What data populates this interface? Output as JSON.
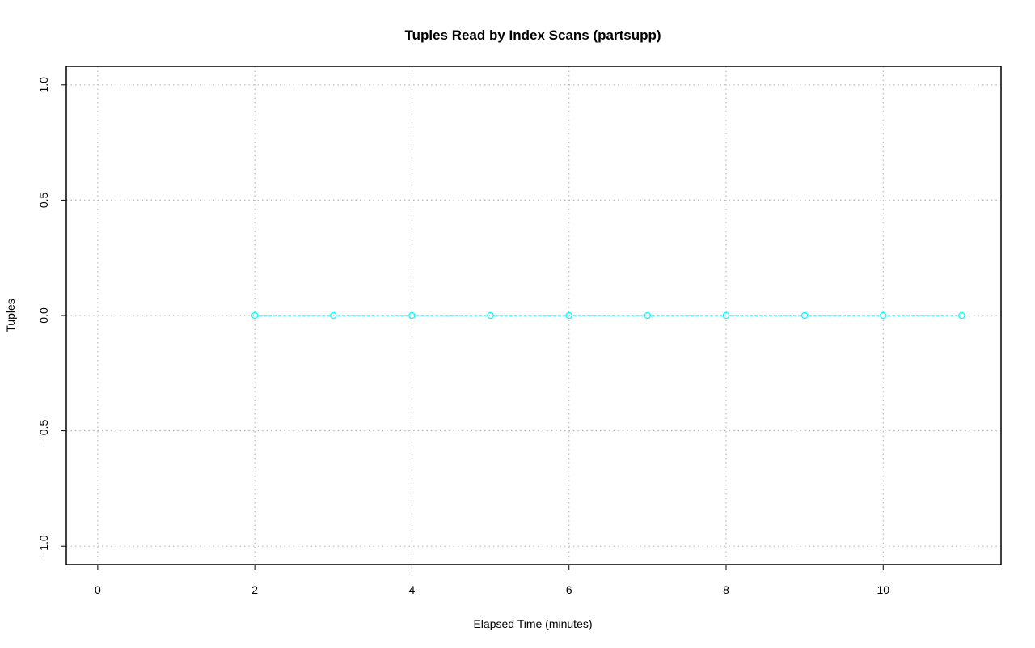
{
  "chart_data": {
    "type": "line",
    "title": "Tuples Read by Index Scans (partsupp)",
    "xlabel": "Elapsed Time (minutes)",
    "ylabel": "Tuples",
    "xlim": [
      -0.4,
      11.5
    ],
    "ylim": [
      -1.08,
      1.08
    ],
    "x_ticks": [
      0,
      2,
      4,
      6,
      8,
      10
    ],
    "x_tick_labels": [
      "0",
      "2",
      "4",
      "6",
      "8",
      "10"
    ],
    "y_ticks": [
      -1.0,
      -0.5,
      0.0,
      0.5,
      1.0
    ],
    "y_tick_labels": [
      "-1.0",
      "-0.5",
      "0.0",
      "0.5",
      "1.0"
    ],
    "grid": true,
    "series": [
      {
        "color": "#00ffff",
        "marker": "open-circle",
        "line_style": "dashed",
        "x": [
          2,
          3,
          4,
          5,
          6,
          7,
          8,
          9,
          10,
          11
        ],
        "y": [
          0,
          0,
          0,
          0,
          0,
          0,
          0,
          0,
          0,
          0
        ]
      }
    ]
  }
}
